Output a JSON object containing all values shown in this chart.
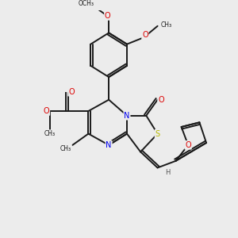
{
  "background_color": "#ececec",
  "bond_color": "#1a1a1a",
  "N_color": "#0000ee",
  "O_color": "#dd0000",
  "S_color": "#b8b800",
  "H_color": "#555555",
  "figsize": [
    3.0,
    3.0
  ],
  "dpi": 100,
  "xlim": [
    0,
    10
  ],
  "ylim": [
    0,
    10
  ],
  "lw": 1.4,
  "fs": 7.0,
  "fs_small": 6.0
}
